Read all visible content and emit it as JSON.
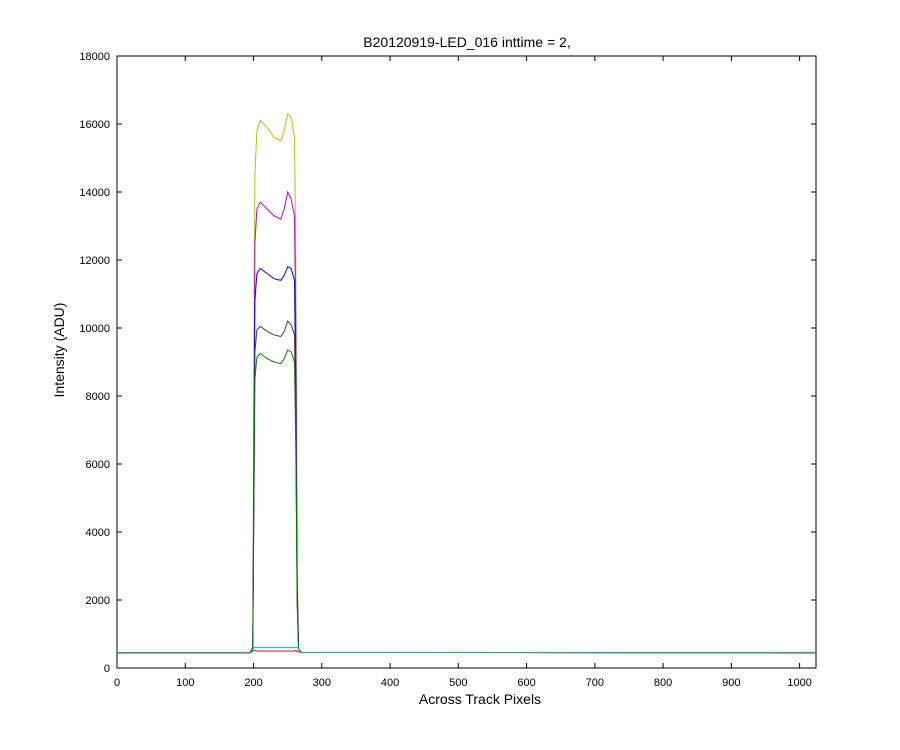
{
  "chart_data": {
    "type": "line",
    "title": "B20120919-LED_016 inttime = 2,",
    "xlabel": "Across Track Pixels",
    "ylabel": "Intensity (ADU)",
    "xlim": [
      0,
      1024
    ],
    "ylim": [
      0,
      18000
    ],
    "x_ticks": [
      0,
      100,
      200,
      300,
      400,
      500,
      600,
      700,
      800,
      900,
      1000
    ],
    "y_ticks": [
      0,
      2000,
      4000,
      6000,
      8000,
      10000,
      12000,
      14000,
      16000,
      18000
    ],
    "grid": false,
    "legend": "none",
    "series": [
      {
        "color": "#bfbf00",
        "x": [
          0,
          195,
          199,
          202,
          205,
          210,
          220,
          230,
          240,
          245,
          250,
          255,
          260,
          262,
          264,
          266,
          270,
          1024
        ],
        "y": [
          450,
          450,
          600,
          14500,
          15800,
          16100,
          15900,
          15600,
          15500,
          15800,
          16300,
          16200,
          15600,
          12000,
          3000,
          550,
          460,
          450
        ]
      },
      {
        "color": "#bf00bf",
        "x": [
          0,
          195,
          199,
          202,
          205,
          210,
          220,
          230,
          240,
          245,
          250,
          255,
          260,
          262,
          264,
          266,
          270,
          1024
        ],
        "y": [
          450,
          450,
          600,
          12500,
          13500,
          13700,
          13500,
          13300,
          13200,
          13500,
          14000,
          13800,
          13300,
          10000,
          2500,
          550,
          460,
          450
        ]
      },
      {
        "color": "#0000ff",
        "x": [
          0,
          195,
          199,
          202,
          205,
          210,
          220,
          230,
          240,
          245,
          250,
          255,
          260,
          262,
          264,
          266,
          270,
          1024
        ],
        "y": [
          450,
          450,
          600,
          10800,
          11600,
          11750,
          11600,
          11450,
          11400,
          11550,
          11800,
          11750,
          11400,
          8000,
          2200,
          550,
          460,
          450
        ]
      },
      {
        "color": "#404040",
        "x": [
          0,
          195,
          199,
          202,
          205,
          210,
          220,
          230,
          240,
          245,
          250,
          255,
          260,
          262,
          264,
          266,
          270,
          1024
        ],
        "y": [
          450,
          450,
          600,
          9300,
          9950,
          10050,
          9900,
          9800,
          9750,
          9900,
          10200,
          10100,
          9800,
          7000,
          2000,
          550,
          460,
          450
        ]
      },
      {
        "color": "#008000",
        "x": [
          0,
          195,
          199,
          202,
          205,
          210,
          220,
          230,
          240,
          245,
          250,
          255,
          260,
          262,
          264,
          266,
          270,
          1024
        ],
        "y": [
          450,
          450,
          600,
          8500,
          9150,
          9250,
          9100,
          9000,
          8950,
          9100,
          9350,
          9300,
          9000,
          6500,
          1800,
          550,
          460,
          450
        ]
      },
      {
        "color": "#ff0000",
        "x": [
          0,
          195,
          199,
          201,
          205,
          260,
          262,
          265,
          268,
          1024
        ],
        "y": [
          450,
          450,
          500,
          520,
          500,
          500,
          520,
          480,
          455,
          450
        ]
      },
      {
        "color": "#00bfbf",
        "x": [
          0,
          198,
          200,
          265,
          268,
          1024
        ],
        "y": [
          460,
          460,
          600,
          600,
          460,
          460
        ]
      }
    ]
  }
}
